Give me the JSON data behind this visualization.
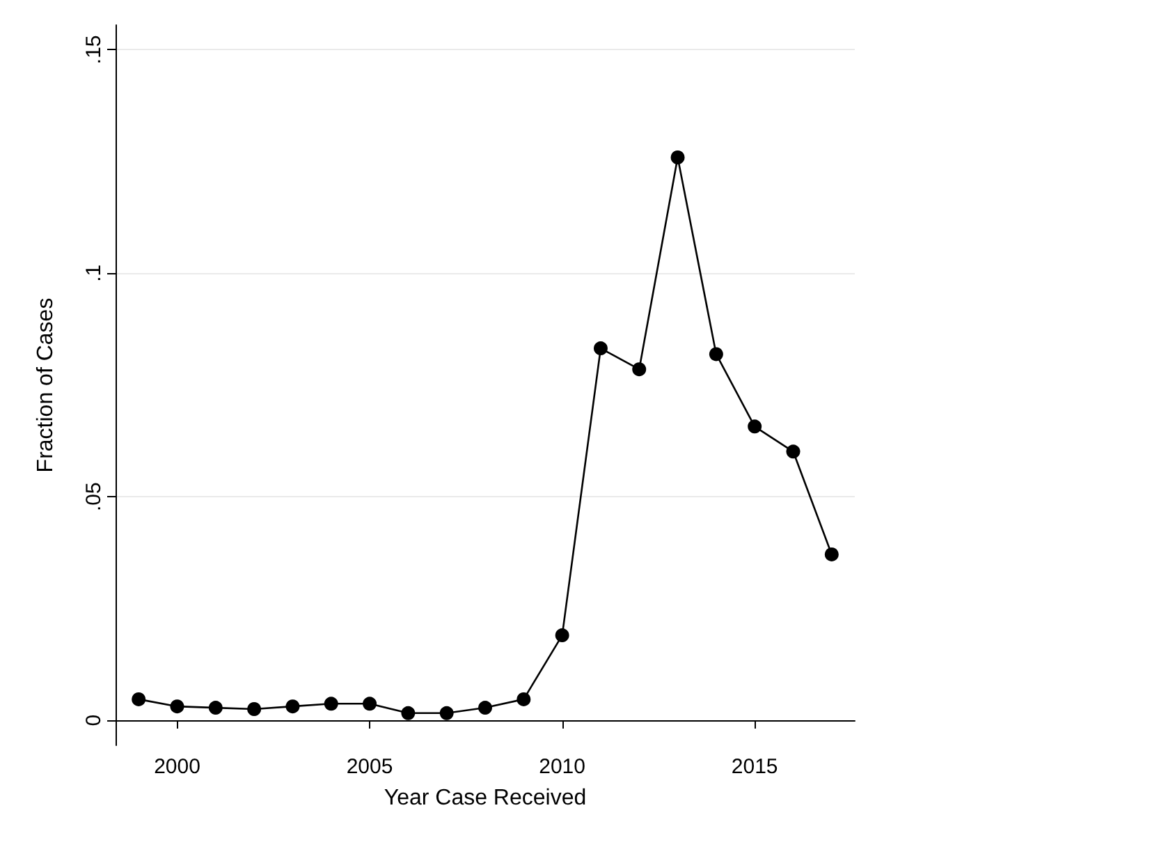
{
  "chart_data": {
    "type": "line",
    "xlabel": "Year Case Received",
    "ylabel": "Fraction of Cases",
    "x": [
      1999,
      2000,
      2001,
      2002,
      2003,
      2004,
      2005,
      2006,
      2007,
      2008,
      2009,
      2010,
      2011,
      2012,
      2013,
      2014,
      2015,
      2016,
      2017
    ],
    "series": [
      {
        "color": "#000000",
        "values": [
          0.0047,
          0.0031,
          0.0028,
          0.0025,
          0.0031,
          0.0037,
          0.0037,
          0.0016,
          0.0016,
          0.0028,
          0.0047,
          0.019,
          0.0832,
          0.0785,
          0.1259,
          0.0819,
          0.0657,
          0.0601,
          0.0371
        ]
      }
    ],
    "xlim": [
      1998.4,
      2017.6
    ],
    "xticks": [
      2000,
      2005,
      2010,
      2015
    ],
    "ylim": [
      -0.0056,
      0.1555
    ],
    "yticks": [
      {
        "value": 0,
        "label": "0"
      },
      {
        "value": 0.05,
        "label": ".05"
      },
      {
        "value": 0.1,
        "label": ".1"
      },
      {
        "value": 0.15,
        "label": ".15"
      }
    ],
    "grid": "y",
    "marker": "circle",
    "line_style": "solid"
  }
}
